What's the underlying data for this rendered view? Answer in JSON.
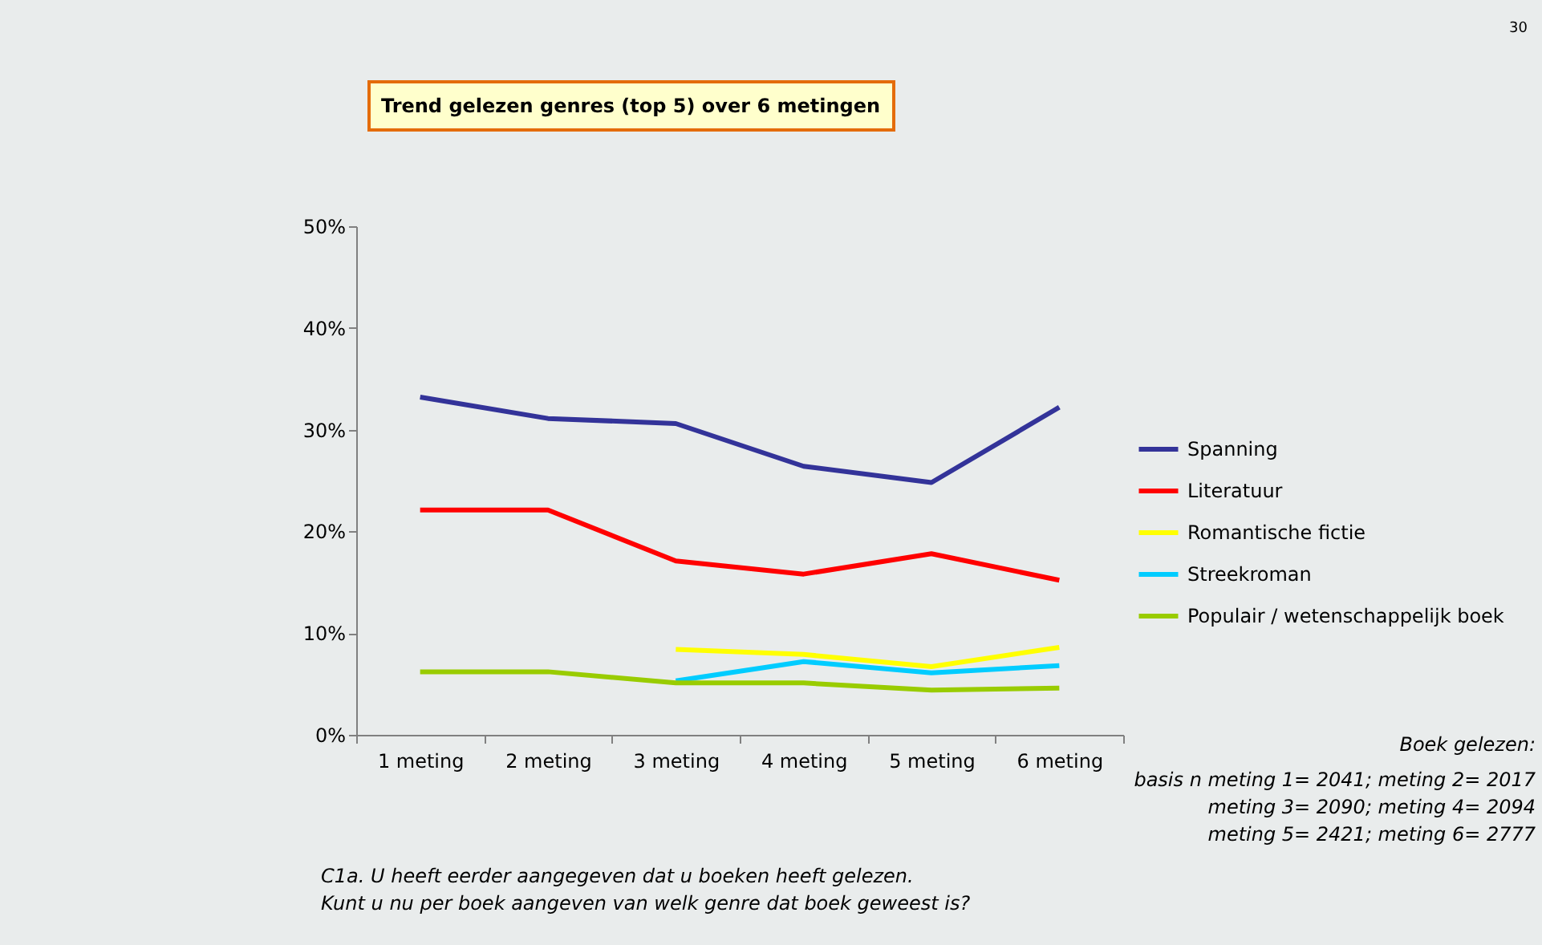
{
  "chart_data": {
    "type": "line",
    "title": "Trend gelezen genres (top 5) over 6 metingen",
    "categories": [
      "1 meting",
      "2 meting",
      "3 meting",
      "4 meting",
      "5 meting",
      "6 meting"
    ],
    "series": [
      {
        "name": "Spanning",
        "color": "#333399",
        "values": [
          33.2,
          31.1,
          30.6,
          26.4,
          24.8,
          32.2
        ]
      },
      {
        "name": "Literatuur",
        "color": "#ff0000",
        "values": [
          22.1,
          22.1,
          17.1,
          15.8,
          17.8,
          15.2
        ]
      },
      {
        "name": "Romantische fictie",
        "color": "#ffff00",
        "values": [
          null,
          null,
          8.4,
          7.9,
          6.7,
          8.6
        ]
      },
      {
        "name": "Streekroman",
        "color": "#00ccff",
        "values": [
          null,
          null,
          5.3,
          7.2,
          6.1,
          6.8
        ]
      },
      {
        "name": "Populair / wetenschappelijk boek",
        "color": "#99cc00",
        "values": [
          6.2,
          6.2,
          5.1,
          5.1,
          4.4,
          4.6
        ]
      }
    ],
    "ylim": [
      0,
      50
    ],
    "yticks": [
      {
        "value": 0,
        "label": "0%"
      },
      {
        "value": 10,
        "label": "10%"
      },
      {
        "value": 20,
        "label": "20%"
      },
      {
        "value": 30,
        "label": "30%"
      },
      {
        "value": 40,
        "label": "40%"
      },
      {
        "value": 50,
        "label": "50%"
      }
    ],
    "grid": false,
    "legend": "right",
    "marker": "none",
    "line_style": "solid",
    "annotations": [
      "Boek gelezen:",
      "basis n meting 1= 2041; meting 2= 2017",
      "meting 3= 2090; meting 4= 2094",
      "meting 5= 2421; meting 6= 2777",
      "C1a. U heeft eerder aangegeven dat u boeken heeft gelezen.",
      "Kunt u nu per boek aangeven van welk genre dat boek geweest is?",
      "30"
    ]
  }
}
